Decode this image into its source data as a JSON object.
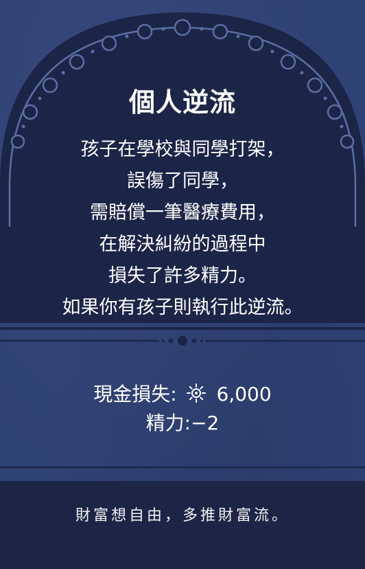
{
  "card": {
    "title": "個人逆流",
    "story_lines": [
      "孩子在學校與同學打架，",
      "誤傷了同學，",
      "需賠償一筆醫療費用，",
      "在解決糾紛的過程中",
      "損失了許多精力。",
      "如果你有孩子則執行此逆流。"
    ],
    "effects": {
      "cash_label": "現金損失:",
      "cash_icon": "sun-coin-icon",
      "cash_value": "6,000",
      "energy_label": "精力:",
      "energy_value": "−2"
    },
    "footer": "財富想自由，多推財富流。"
  },
  "colors": {
    "card_blue": "#2f4274",
    "arch_navy": "#1b2547",
    "footer_navy": "#1c2545",
    "ornament_line": "#5a6fa3",
    "text": "#ffffff"
  }
}
